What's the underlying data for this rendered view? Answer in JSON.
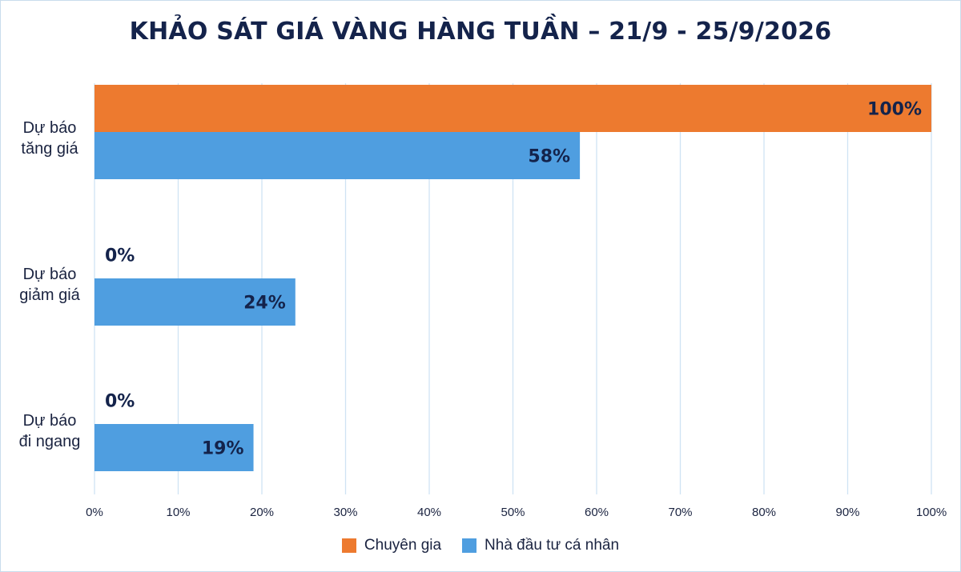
{
  "chart_data": {
    "type": "bar",
    "orientation": "horizontal",
    "title": "KHẢO SÁT GIÁ VÀNG HÀNG TUẦN – 21/9 - 25/9/2026",
    "categories": [
      [
        "Dự báo",
        "tăng giá"
      ],
      [
        "Dự báo",
        "giảm giá"
      ],
      [
        "Dự báo",
        "đi ngang"
      ]
    ],
    "series": [
      {
        "name": "Chuyên gia",
        "values": [
          100,
          0,
          0
        ],
        "labels": [
          "100%",
          "0%",
          "0%"
        ],
        "color": "#ed7a2f"
      },
      {
        "name": "Nhà đầu tư cá nhân",
        "values": [
          58,
          24,
          19
        ],
        "labels": [
          "58%",
          "24%",
          "19%"
        ],
        "color": "#4f9ee0"
      }
    ],
    "xlim": [
      0,
      100
    ],
    "xticks": [
      "0%",
      "10%",
      "20%",
      "30%",
      "40%",
      "50%",
      "60%",
      "70%",
      "80%",
      "90%",
      "100%"
    ],
    "grid": "vertical",
    "legend": "bottom-center"
  }
}
